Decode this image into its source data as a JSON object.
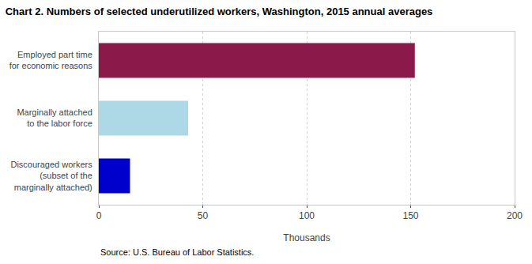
{
  "chart_data": {
    "type": "bar",
    "orientation": "horizontal",
    "title": "Chart 2. Numbers of selected underutilized workers, Washington, 2015 annual averages",
    "categories": [
      "Discouraged workers\n(subset of the\nmarginally attached)",
      "Marginally attached\nto the labor force",
      "Employed part time\nfor economic reasons"
    ],
    "values": [
      15,
      43,
      152
    ],
    "colors": [
      "#0000CC",
      "#ADD8E6",
      "#8B1A4A"
    ],
    "xlim": [
      0,
      200
    ],
    "xticks": [
      0,
      50,
      100,
      150,
      200
    ],
    "xlabel": "Thousands",
    "grid": true,
    "annotations": [
      {
        "text": "Source: U.S. Bureau of Labor Statistics."
      }
    ]
  }
}
